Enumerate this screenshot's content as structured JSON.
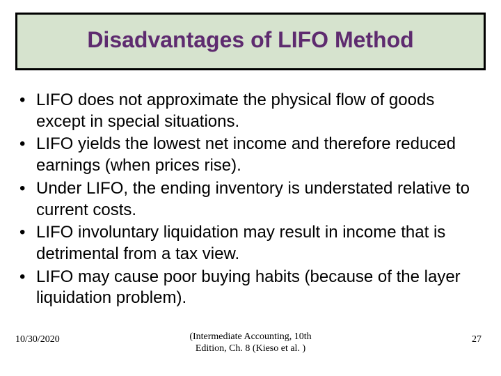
{
  "title": {
    "text": "Disadvantages of LIFO Method",
    "fontsize": 32,
    "color": "#5e2b6f",
    "box_bg": "#d6e3ce",
    "box_border": "#000000"
  },
  "bullets": {
    "fontsize": 24,
    "color": "#000000",
    "items": [
      "LIFO does not approximate the physical flow of goods except in special situations.",
      "LIFO yields the lowest net income and therefore reduced earnings (when prices rise).",
      "Under LIFO, the ending inventory is understated relative to current costs.",
      "LIFO involuntary liquidation may result in income that is detrimental from a tax view.",
      "LIFO may cause poor buying habits (because of the layer liquidation problem)."
    ]
  },
  "footer": {
    "date": "10/30/2020",
    "center": "(Intermediate Accounting, 10th\nEdition, Ch. 8 (Kieso et al. )",
    "page": "27",
    "fontsize": 14,
    "color": "#000000"
  },
  "background_color": "#ffffff"
}
